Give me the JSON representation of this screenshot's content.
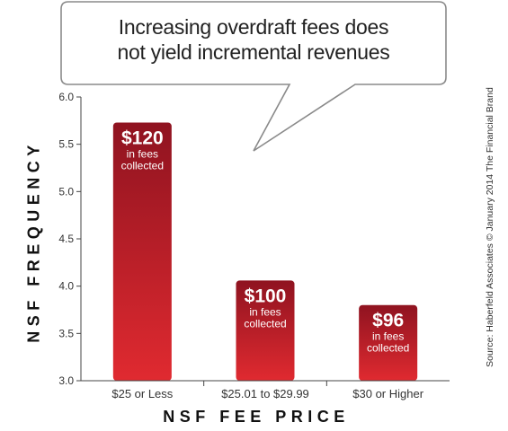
{
  "chart_data": {
    "type": "bar",
    "title": "Increasing overdraft fees does not yield incremental revenues",
    "title_lines": [
      "Increasing overdraft fees does",
      "not yield incremental revenues"
    ],
    "categories": [
      "$25 or Less",
      "$25.01 to $29.99",
      "$30 or Higher"
    ],
    "values": [
      5.73,
      4.06,
      3.8
    ],
    "labels": [
      {
        "amount": "$120",
        "lines": [
          "in fees",
          "collected"
        ]
      },
      {
        "amount": "$100",
        "lines": [
          "in fees",
          "collected"
        ]
      },
      {
        "amount": "$96",
        "lines": [
          "in fees",
          "collected"
        ]
      }
    ],
    "xlabel": "NSF FEE PRICE",
    "ylabel": "NSF FREQUENCY",
    "ylim": [
      3.0,
      6.0
    ],
    "yticks": [
      "3.0",
      "3.5",
      "4.0",
      "4.5",
      "5.0",
      "5.5",
      "6.0"
    ],
    "grid": false,
    "colors": {
      "bar_top": "#8f1320",
      "bar_bottom": "#e02a30",
      "axis": "#444444"
    }
  },
  "source": "Source: Haberfeld Associates © January 2014 The Financial Brand"
}
